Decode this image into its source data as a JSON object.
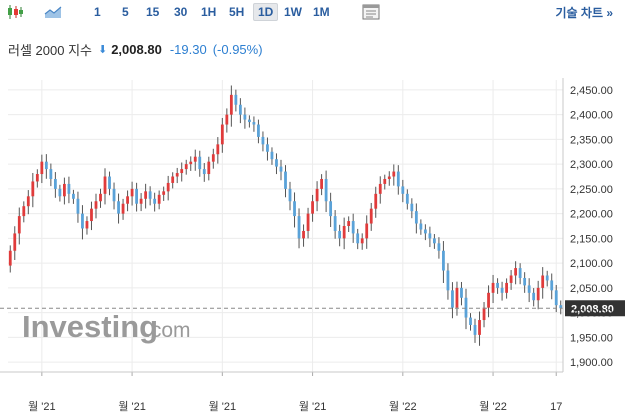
{
  "toolbar": {
    "candle_icon": "candlestick-icon",
    "area_icon": "area-chart-icon",
    "settings_icon": "chart-settings-icon",
    "timeframes": [
      "1",
      "5",
      "15",
      "30",
      "1H",
      "5H",
      "1D",
      "1W",
      "1M"
    ],
    "active_timeframe": "1D",
    "tech_chart_label": "기술 차트 »"
  },
  "quote": {
    "name": "러셀 2000 지수",
    "arrow": "⬇",
    "price": "2,008.80",
    "change": "-19.30",
    "change_pct": "(-0.95%)"
  },
  "watermark": {
    "brand": "Investing",
    "suffix": ".com"
  },
  "colors": {
    "up": "#e03b3b",
    "down": "#5aa2d8",
    "accent": "#2a5d9f",
    "price_tag_bg": "#333333"
  },
  "chart_data": {
    "type": "candlestick",
    "ylim": [
      1880,
      2470
    ],
    "y_ticks": [
      2450,
      2400,
      2350,
      2300,
      2250,
      2200,
      2150,
      2100,
      2050,
      2000,
      1950,
      1900
    ],
    "y_tick_labels": [
      "2,450.00",
      "2,400.00",
      "2,350.00",
      "2,300.00",
      "2,250.00",
      "2,200.00",
      "2,150.00",
      "2,100.00",
      "2,050.00",
      "2,000.00",
      "1,950.00",
      "1,900.00"
    ],
    "x_tick_labels": [
      "월 '21",
      "월 '21",
      "월 '21",
      "월 '21",
      "월 '22",
      "월 '22",
      "17"
    ],
    "x_tick_index": [
      7,
      27,
      47,
      67,
      87,
      107,
      121
    ],
    "current_price": 2008.8,
    "current_price_label": "2,008.80",
    "closes": [
      2125,
      2160,
      2195,
      2215,
      2235,
      2265,
      2280,
      2305,
      2290,
      2270,
      2250,
      2235,
      2260,
      2240,
      2230,
      2200,
      2170,
      2185,
      2210,
      2225,
      2240,
      2275,
      2250,
      2225,
      2200,
      2220,
      2235,
      2250,
      2220,
      2230,
      2245,
      2230,
      2220,
      2238,
      2245,
      2262,
      2275,
      2282,
      2290,
      2300,
      2305,
      2315,
      2290,
      2280,
      2305,
      2320,
      2340,
      2380,
      2400,
      2440,
      2420,
      2400,
      2390,
      2385,
      2380,
      2355,
      2340,
      2325,
      2310,
      2295,
      2285,
      2250,
      2225,
      2195,
      2150,
      2165,
      2200,
      2225,
      2250,
      2270,
      2225,
      2195,
      2165,
      2150,
      2175,
      2185,
      2160,
      2140,
      2150,
      2180,
      2210,
      2240,
      2260,
      2270,
      2275,
      2285,
      2255,
      2240,
      2220,
      2205,
      2180,
      2168,
      2160,
      2150,
      2140,
      2125,
      2085,
      2045,
      2010,
      2050,
      2030,
      1990,
      1975,
      1955,
      1985,
      2010,
      2040,
      2060,
      2050,
      2040,
      2060,
      2075,
      2090,
      2070,
      2055,
      2040,
      2025,
      2050,
      2075,
      2065,
      2045,
      2015,
      2008.8
    ]
  }
}
